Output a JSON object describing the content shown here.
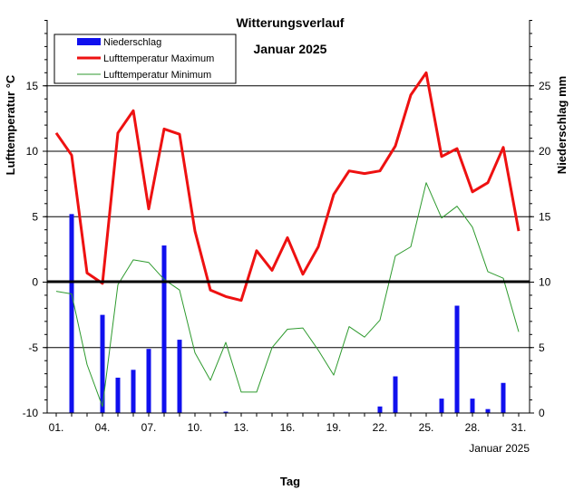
{
  "chart_data": {
    "type": "bar+line",
    "title": "Witterungsverlauf",
    "subtitle": "Januar 2025",
    "xlabel": "Tag",
    "x_sublabel": "Januar 2025",
    "ylabel_left": "Lufttemperatur °C",
    "ylabel_right": "Niederschlag  mm",
    "days": [
      1,
      2,
      3,
      4,
      5,
      6,
      7,
      8,
      9,
      10,
      11,
      12,
      13,
      14,
      15,
      16,
      17,
      18,
      19,
      20,
      21,
      22,
      23,
      24,
      25,
      26,
      27,
      28,
      29,
      30,
      31
    ],
    "x_ticks": [
      "01.",
      "04.",
      "07.",
      "10.",
      "13.",
      "16.",
      "19.",
      "22.",
      "25.",
      "28.",
      "31."
    ],
    "left_axis": {
      "ylim": [
        -10,
        20
      ],
      "ticks": [
        -10,
        -5,
        0,
        5,
        10,
        15
      ]
    },
    "right_axis": {
      "ylim": [
        0,
        30
      ],
      "ticks": [
        0,
        5,
        10,
        15,
        20,
        25
      ]
    },
    "legend": {
      "position": "top-left",
      "entries": [
        "Niederschlag",
        "Lufttemperatur Maximum",
        "Lufttemperatur Minimum"
      ]
    },
    "series": [
      {
        "name": "Niederschlag",
        "kind": "bar",
        "axis": "right",
        "color": "#1010ee",
        "values": [
          0,
          15.2,
          0,
          7.5,
          2.7,
          3.3,
          4.9,
          12.8,
          5.6,
          0,
          0,
          0.1,
          0,
          0,
          0,
          0,
          0,
          0,
          0,
          0,
          0,
          0.5,
          2.8,
          0,
          0,
          1.1,
          8.2,
          1.1,
          0.3,
          2.3,
          0
        ]
      },
      {
        "name": "Lufttemperatur Maximum",
        "kind": "line",
        "axis": "left",
        "color": "#ee1111",
        "values": [
          11.4,
          9.7,
          0.7,
          -0.1,
          11.4,
          13.1,
          5.6,
          11.7,
          11.3,
          3.9,
          -0.6,
          -1.1,
          -1.4,
          2.4,
          0.9,
          3.4,
          0.6,
          2.7,
          6.7,
          8.5,
          8.3,
          8.5,
          10.4,
          14.3,
          16.0,
          9.6,
          10.2,
          6.9,
          7.6,
          10.3,
          3.9
        ]
      },
      {
        "name": "Lufttemperatur Minimum",
        "kind": "line",
        "axis": "left",
        "color": "#2e9a2e",
        "values": [
          -0.7,
          -0.9,
          -6.3,
          -9.5,
          -0.2,
          1.7,
          1.5,
          0.2,
          -0.6,
          -5.4,
          -7.5,
          -4.6,
          -8.4,
          -8.4,
          -5.0,
          -3.6,
          -3.5,
          -5.2,
          -7.1,
          -3.4,
          -4.2,
          -2.9,
          2.0,
          2.7,
          7.6,
          4.9,
          5.8,
          4.2,
          0.8,
          0.3,
          -3.8
        ]
      }
    ]
  }
}
